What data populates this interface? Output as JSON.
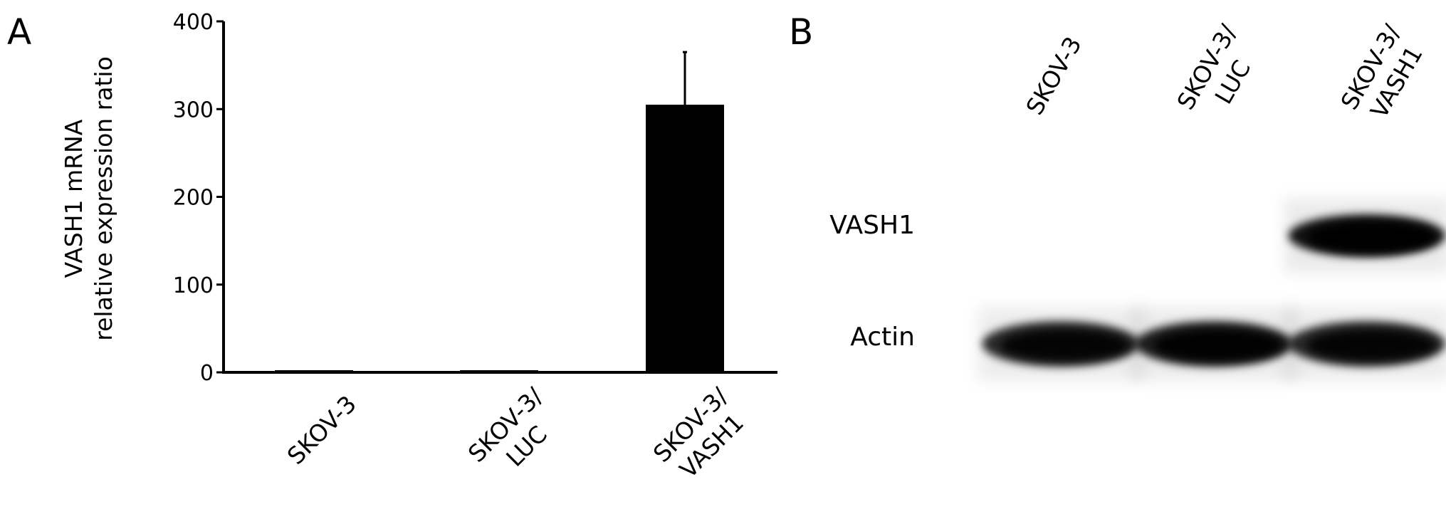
{
  "panels": {
    "a_label": "A",
    "b_label": "B"
  },
  "chart_data": {
    "type": "bar",
    "categories": [
      "SKOV-3",
      "SKOV-3/\nLUC",
      "SKOV-3/\nVASH1"
    ],
    "category_lines": [
      [
        "SKOV-3"
      ],
      [
        "SKOV-3/",
        "LUC"
      ],
      [
        "SKOV-3/",
        "VASH1"
      ]
    ],
    "values": [
      1,
      2,
      305
    ],
    "error_upper": [
      1,
      1,
      60
    ],
    "ylabel_lines": [
      "VASH1 mRNA",
      "relative expression ratio"
    ],
    "xlabel": "",
    "ylim": [
      0,
      400
    ],
    "yticks": [
      0,
      100,
      200,
      300,
      400
    ],
    "bar_color": "#000000",
    "grid": false
  },
  "blot": {
    "lanes": [
      [
        "SKOV-3"
      ],
      [
        "SKOV-3/",
        "LUC"
      ],
      [
        "SKOV-3/",
        "VASH1"
      ]
    ],
    "rows": [
      {
        "label": "VASH1",
        "band_intensity": [
          0,
          0,
          1
        ]
      },
      {
        "label": "Actin",
        "band_intensity": [
          0.9,
          0.95,
          0.9
        ]
      }
    ]
  }
}
